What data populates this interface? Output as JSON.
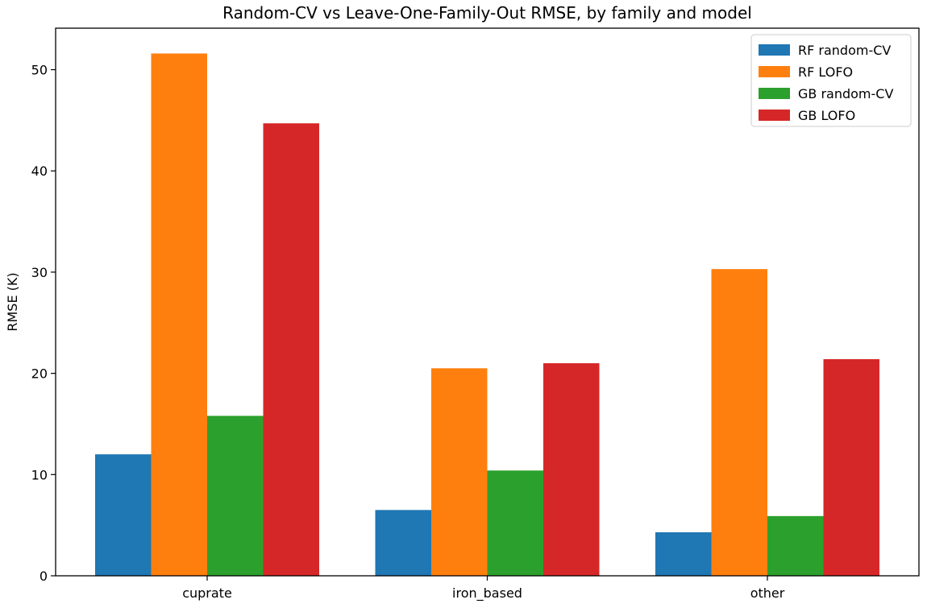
{
  "chart_data": {
    "type": "bar",
    "title": "Random-CV vs Leave-One-Family-Out RMSE, by family and model",
    "xlabel": "",
    "ylabel": "RMSE (K)",
    "categories": [
      "cuprate",
      "iron_based",
      "other"
    ],
    "ylim": [
      0,
      54.1
    ],
    "yticks": [
      0,
      10,
      20,
      30,
      40,
      50
    ],
    "grid": false,
    "legend_position": "top-right",
    "series": [
      {
        "name": "RF random-CV",
        "color": "#1f77b4",
        "values": [
          12.0,
          6.5,
          4.3
        ]
      },
      {
        "name": "RF LOFO",
        "color": "#ff7f0e",
        "values": [
          51.6,
          20.5,
          30.3
        ]
      },
      {
        "name": "GB random-CV",
        "color": "#2ca02c",
        "values": [
          15.8,
          10.4,
          5.9
        ]
      },
      {
        "name": "GB LOFO",
        "color": "#d62728",
        "values": [
          44.7,
          21.0,
          21.4
        ]
      }
    ]
  }
}
